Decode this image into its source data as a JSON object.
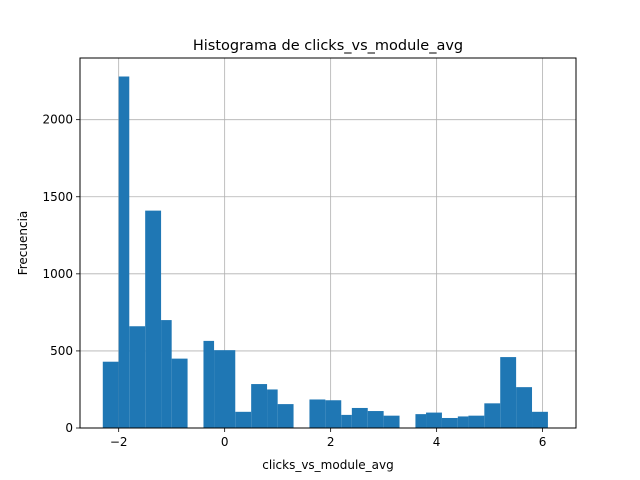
{
  "chart_data": {
    "type": "bar",
    "title": "Histograma de clicks_vs_module_avg",
    "xlabel": "clicks_vs_module_avg",
    "ylabel": "Frecuencia",
    "xlim": [
      -2.73,
      6.63
    ],
    "ylim": [
      0,
      2400
    ],
    "grid": true,
    "bar_color": "#1f77b4",
    "xticks": [
      -2,
      0,
      2,
      4,
      6
    ],
    "xtick_labels": [
      "−2",
      "0",
      "2",
      "4",
      "6"
    ],
    "yticks": [
      0,
      500,
      1000,
      1500,
      2000
    ],
    "ytick_labels": [
      "0",
      "500",
      "1000",
      "1500",
      "2000"
    ],
    "bin_edges": [
      -2.3,
      -2.0,
      -1.8,
      -1.5,
      -1.2,
      -1.0,
      -0.7,
      -0.4,
      -0.2,
      0.2,
      0.5,
      0.8,
      1.0,
      1.3,
      1.6,
      1.9,
      2.2,
      2.4,
      2.7,
      3.0,
      3.3,
      3.6,
      3.8,
      4.1,
      4.4,
      4.6,
      4.9,
      5.2,
      5.5,
      5.8,
      6.1
    ],
    "values": [
      430,
      2280,
      660,
      1410,
      700,
      450,
      0,
      565,
      505,
      105,
      285,
      250,
      155,
      0,
      185,
      180,
      85,
      130,
      110,
      80,
      0,
      90,
      100,
      65,
      75,
      80,
      160,
      460,
      265,
      105
    ]
  }
}
